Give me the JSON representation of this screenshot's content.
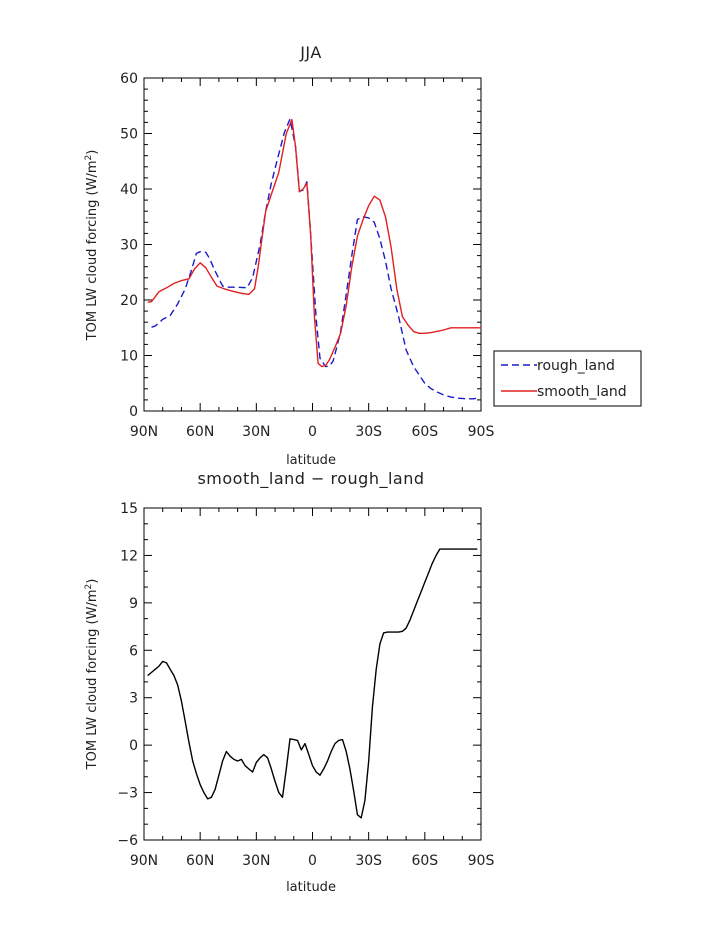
{
  "chart_data": [
    {
      "type": "line",
      "title": "JJA",
      "xlabel": "latitude",
      "ylabel": "TOM LW cloud forcing (W/m",
      "ylabel_sup": "2",
      "ylabel_end": ")",
      "xlim": [
        90,
        -90
      ],
      "ylim": [
        0,
        60
      ],
      "xticks": [
        90,
        60,
        30,
        0,
        -30,
        -60,
        -90
      ],
      "xtick_labels": [
        "90N",
        "60N",
        "30N",
        "0",
        "30S",
        "60S",
        "90S"
      ],
      "yticks": [
        0,
        10,
        20,
        30,
        40,
        50,
        60
      ],
      "ytick_labels": [
        "0",
        "10",
        "20",
        "30",
        "40",
        "50",
        "60"
      ],
      "legend": "right",
      "series": [
        {
          "name": "rough_land",
          "color": "#1a1acc",
          "dash": true,
          "x": [
            86,
            84,
            80,
            76,
            72,
            68,
            65,
            62,
            60,
            57,
            55,
            52,
            48,
            45,
            40,
            35,
            32,
            28,
            25,
            22,
            19,
            15,
            12,
            9,
            7,
            5,
            3,
            1,
            -2,
            -4,
            -7,
            -9,
            -11,
            -13,
            -15,
            -18,
            -21,
            -24,
            -27,
            -30,
            -33,
            -36,
            -39,
            -42,
            -46,
            -50,
            -54,
            -57,
            -60,
            -63,
            -66,
            -70,
            -74,
            -78,
            -82,
            -86,
            -89
          ],
          "y": [
            15.1,
            15.3,
            16.5,
            17.2,
            19.3,
            22.0,
            25.0,
            28.4,
            28.7,
            28.6,
            27.5,
            25.2,
            22.5,
            22.3,
            22.3,
            22.2,
            24.0,
            30.0,
            36.0,
            41.0,
            45.0,
            50.2,
            52.6,
            47.6,
            39.6,
            39.8,
            41.3,
            32.0,
            16.5,
            9.5,
            8.0,
            8.1,
            9.0,
            11.5,
            14.3,
            21.0,
            28.0,
            34.5,
            35.0,
            34.8,
            34.0,
            31.0,
            27.0,
            22.0,
            17.0,
            11.0,
            8.0,
            6.5,
            5.0,
            4.1,
            3.5,
            2.9,
            2.5,
            2.3,
            2.2,
            2.2,
            2.4
          ]
        },
        {
          "name": "smooth_land",
          "color": "#e02020",
          "dash": false,
          "x": [
            88,
            86,
            82,
            78,
            74,
            70,
            66,
            63,
            60,
            57,
            54,
            51,
            47,
            43,
            38,
            34,
            31,
            29,
            27,
            25,
            22,
            18,
            14,
            11,
            9,
            7,
            5,
            3,
            1,
            -1,
            -3,
            -5,
            -7,
            -9,
            -12,
            -15,
            -18,
            -21,
            -24,
            -27,
            -30,
            -33,
            -36,
            -39,
            -42,
            -45,
            -48,
            -51,
            -54,
            -57,
            -60,
            -63,
            -66,
            -70,
            -74,
            -78,
            -82,
            -86,
            -90
          ],
          "y": [
            19.6,
            19.7,
            21.5,
            22.2,
            23.0,
            23.5,
            23.8,
            25.6,
            26.7,
            25.8,
            24.1,
            22.5,
            22.0,
            21.6,
            21.2,
            21.0,
            22.0,
            26.0,
            31.0,
            36.0,
            39.0,
            43.0,
            50.0,
            52.5,
            47.5,
            39.5,
            40.0,
            41.0,
            32.0,
            17.0,
            8.6,
            8.0,
            8.2,
            9.2,
            11.5,
            14.0,
            19.0,
            26.0,
            31.5,
            34.5,
            37.0,
            38.7,
            38.0,
            35.0,
            29.5,
            22.0,
            17.0,
            15.5,
            14.3,
            14.0,
            14.0,
            14.1,
            14.3,
            14.6,
            15.0,
            15.0,
            15.0,
            15.0,
            15.0
          ]
        }
      ]
    },
    {
      "type": "line",
      "title": "smooth_land − rough_land",
      "xlabel": "latitude",
      "ylabel": "TOM LW cloud forcing (W/m",
      "ylabel_sup": "2",
      "ylabel_end": ")",
      "xlim": [
        90,
        -90
      ],
      "ylim": [
        -6,
        15
      ],
      "xticks": [
        90,
        60,
        30,
        0,
        -30,
        -60,
        -90
      ],
      "xtick_labels": [
        "90N",
        "60N",
        "30N",
        "0",
        "30S",
        "60S",
        "90S"
      ],
      "yticks": [
        -6,
        -3,
        0,
        3,
        6,
        9,
        12,
        15
      ],
      "ytick_labels": [
        "−6",
        "−3",
        "0",
        "3",
        "6",
        "9",
        "12",
        "15"
      ],
      "series": [
        {
          "color": "#000000",
          "dash": false,
          "x": [
            88,
            86,
            84,
            82,
            80,
            78,
            76,
            74,
            72,
            70,
            68,
            66,
            64,
            62,
            60,
            58,
            56,
            54,
            52,
            50,
            48,
            46,
            44,
            42,
            40,
            38,
            36,
            34,
            32,
            30,
            28,
            26,
            24,
            22,
            20,
            18,
            16,
            14,
            12,
            10,
            8,
            6,
            4,
            2,
            0,
            -2,
            -4,
            -6,
            -8,
            -10,
            -12,
            -14,
            -16,
            -18,
            -20,
            -22,
            -24,
            -26,
            -28,
            -30,
            -32,
            -34,
            -36,
            -38,
            -40,
            -42,
            -44,
            -46,
            -48,
            -50,
            -52,
            -54,
            -56,
            -58,
            -60,
            -62,
            -64,
            -66,
            -68,
            -70,
            -72,
            -74,
            -76,
            -78,
            -80,
            -82,
            -84,
            -86,
            -88
          ],
          "y": [
            4.4,
            4.6,
            4.8,
            5.0,
            5.3,
            5.2,
            4.8,
            4.4,
            3.8,
            2.8,
            1.5,
            0.2,
            -1.0,
            -1.8,
            -2.5,
            -3.0,
            -3.4,
            -3.3,
            -2.8,
            -1.9,
            -1.0,
            -0.4,
            -0.7,
            -0.9,
            -1.0,
            -0.9,
            -1.3,
            -1.5,
            -1.7,
            -1.1,
            -0.8,
            -0.6,
            -0.8,
            -1.5,
            -2.3,
            -3.0,
            -3.3,
            -1.5,
            0.4,
            0.35,
            0.3,
            -0.3,
            0.1,
            -0.6,
            -1.3,
            -1.7,
            -1.9,
            -1.5,
            -1.0,
            -0.4,
            0.1,
            0.3,
            0.35,
            -0.4,
            -1.5,
            -2.9,
            -4.4,
            -4.6,
            -3.5,
            -1.0,
            2.4,
            4.8,
            6.4,
            7.1,
            7.15,
            7.15,
            7.15,
            7.15,
            7.2,
            7.4,
            7.9,
            8.5,
            9.1,
            9.7,
            10.3,
            10.9,
            11.5,
            12.0,
            12.4,
            12.4,
            12.4,
            12.4,
            12.4,
            12.4,
            12.4,
            12.4,
            12.4,
            12.4,
            12.4
          ]
        }
      ]
    }
  ]
}
